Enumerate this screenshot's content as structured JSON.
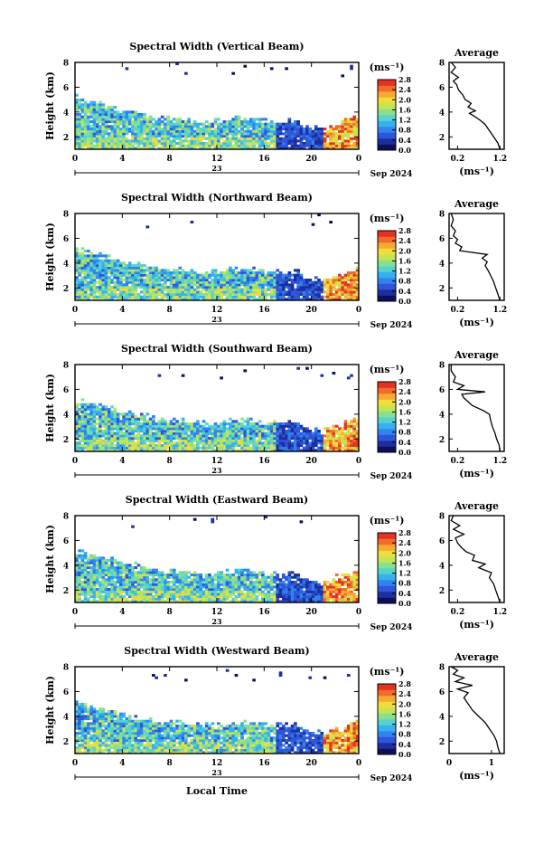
{
  "page": {
    "xlabel": "Local Time",
    "unit_label": "(ms⁻¹)",
    "date_label": "Sep 2024",
    "day_label": "23",
    "avg_title": "Average",
    "avg_xlabel": "(ms⁻¹)"
  },
  "colormap": [
    "#0d0f5a",
    "#1d2f9e",
    "#2f55d8",
    "#2f84ee",
    "#35b1f0",
    "#58d3cc",
    "#88e08f",
    "#c4e454",
    "#f2dc3c",
    "#f7a934",
    "#f36b2b",
    "#e33224"
  ],
  "chart_data": [
    {
      "type": "heatmap",
      "title": "Spectral Width (Vertical Beam)",
      "ylabel": "Height (km)",
      "x_ticks": [
        "0",
        "4",
        "8",
        "12",
        "16",
        "20",
        "0"
      ],
      "x_range": [
        0,
        24
      ],
      "y_ticks": [
        "2",
        "4",
        "6",
        "8"
      ],
      "y_range": [
        1,
        8
      ],
      "colorbar_ticks": [
        "0.0",
        "0.4",
        "0.8",
        "1.2",
        "1.6",
        "2.0",
        "2.4",
        "2.8"
      ],
      "color_range": [
        0,
        2.8
      ],
      "average": {
        "title": "Average",
        "x_ticks": [
          "0.2",
          "1.2"
        ],
        "x_range": [
          0,
          1.3
        ],
        "y_ticks": [
          "2",
          "4",
          "6",
          "8"
        ],
        "y_range": [
          1,
          8
        ],
        "profile": [
          [
            1.2,
            1.0
          ],
          [
            1.15,
            1.5
          ],
          [
            1.05,
            2.0
          ],
          [
            0.95,
            2.5
          ],
          [
            0.85,
            3.0
          ],
          [
            0.75,
            3.3
          ],
          [
            0.62,
            3.6
          ],
          [
            0.48,
            3.9
          ],
          [
            0.62,
            4.1
          ],
          [
            0.45,
            4.4
          ],
          [
            0.52,
            4.7
          ],
          [
            0.38,
            5.0
          ],
          [
            0.32,
            5.4
          ],
          [
            0.22,
            5.8
          ],
          [
            0.18,
            6.2
          ],
          [
            0.1,
            6.5
          ],
          [
            0.22,
            6.8
          ],
          [
            0.05,
            7.2
          ],
          [
            0.15,
            7.6
          ],
          [
            0.05,
            8.0
          ]
        ]
      }
    },
    {
      "type": "heatmap",
      "title": "Spectral Width (Northward Beam)",
      "ylabel": "Height (km)",
      "x_ticks": [
        "0",
        "4",
        "8",
        "12",
        "16",
        "20",
        "0"
      ],
      "x_range": [
        0,
        24
      ],
      "y_ticks": [
        "2",
        "4",
        "6",
        "8"
      ],
      "y_range": [
        1,
        8
      ],
      "colorbar_ticks": [
        "0.0",
        "0.4",
        "0.8",
        "1.2",
        "1.6",
        "2.0",
        "2.4",
        "2.8"
      ],
      "color_range": [
        0,
        2.8
      ],
      "average": {
        "title": "Average",
        "x_ticks": [
          "0.2",
          "1.2"
        ],
        "x_range": [
          0,
          1.3
        ],
        "y_ticks": [
          "2",
          "4",
          "6",
          "8"
        ],
        "y_range": [
          1,
          8
        ],
        "profile": [
          [
            1.2,
            1.0
          ],
          [
            1.15,
            1.5
          ],
          [
            1.1,
            2.0
          ],
          [
            1.05,
            2.5
          ],
          [
            0.98,
            3.0
          ],
          [
            0.92,
            3.4
          ],
          [
            0.85,
            3.8
          ],
          [
            0.9,
            4.1
          ],
          [
            0.78,
            4.4
          ],
          [
            0.9,
            4.7
          ],
          [
            0.25,
            5.0
          ],
          [
            0.3,
            5.3
          ],
          [
            0.15,
            5.6
          ],
          [
            0.2,
            5.9
          ],
          [
            0.1,
            6.2
          ],
          [
            0.15,
            6.6
          ],
          [
            0.05,
            7.0
          ],
          [
            0.1,
            7.5
          ],
          [
            0.05,
            8.0
          ]
        ]
      }
    },
    {
      "type": "heatmap",
      "title": "Spectral Width (Southward Beam)",
      "ylabel": "Height (km)",
      "x_ticks": [
        "0",
        "4",
        "8",
        "12",
        "16",
        "20",
        "0"
      ],
      "x_range": [
        0,
        24
      ],
      "y_ticks": [
        "2",
        "4",
        "6",
        "8"
      ],
      "y_range": [
        1,
        8
      ],
      "colorbar_ticks": [
        "0.0",
        "0.4",
        "0.8",
        "1.2",
        "1.6",
        "2.0",
        "2.4",
        "2.8"
      ],
      "color_range": [
        0,
        2.8
      ],
      "average": {
        "title": "Average",
        "x_ticks": [
          "0.2",
          "1.2"
        ],
        "x_range": [
          0,
          1.3
        ],
        "y_ticks": [
          "2",
          "4",
          "6",
          "8"
        ],
        "y_range": [
          1,
          8
        ],
        "profile": [
          [
            1.2,
            1.0
          ],
          [
            1.18,
            1.5
          ],
          [
            1.12,
            2.0
          ],
          [
            1.08,
            2.5
          ],
          [
            1.02,
            3.0
          ],
          [
            0.98,
            3.5
          ],
          [
            0.95,
            4.0
          ],
          [
            0.8,
            4.3
          ],
          [
            0.55,
            4.7
          ],
          [
            0.45,
            5.0
          ],
          [
            0.35,
            5.3
          ],
          [
            0.3,
            5.6
          ],
          [
            0.85,
            5.8
          ],
          [
            0.2,
            6.0
          ],
          [
            0.35,
            6.3
          ],
          [
            0.1,
            6.6
          ],
          [
            0.15,
            7.0
          ],
          [
            0.05,
            7.5
          ],
          [
            0.05,
            8.0
          ]
        ]
      }
    },
    {
      "type": "heatmap",
      "title": "Spectral Width (Eastward Beam)",
      "ylabel": "Height (km)",
      "x_ticks": [
        "0",
        "4",
        "8",
        "12",
        "16",
        "20",
        "0"
      ],
      "x_range": [
        0,
        24
      ],
      "y_ticks": [
        "2",
        "4",
        "6",
        "8"
      ],
      "y_range": [
        1,
        8
      ],
      "colorbar_ticks": [
        "0.0",
        "0.4",
        "0.8",
        "1.2",
        "1.6",
        "2.0",
        "2.4",
        "2.8"
      ],
      "color_range": [
        0,
        2.8
      ],
      "average": {
        "title": "Average",
        "x_ticks": [
          "0.2",
          "1.2"
        ],
        "x_range": [
          0,
          1.3
        ],
        "y_ticks": [
          "2",
          "4",
          "6",
          "8"
        ],
        "y_range": [
          1,
          8
        ],
        "profile": [
          [
            1.2,
            1.0
          ],
          [
            1.15,
            1.5
          ],
          [
            1.1,
            2.0
          ],
          [
            1.05,
            2.5
          ],
          [
            0.95,
            3.0
          ],
          [
            1.0,
            3.4
          ],
          [
            0.7,
            3.8
          ],
          [
            0.85,
            4.1
          ],
          [
            0.55,
            4.4
          ],
          [
            0.6,
            4.8
          ],
          [
            0.4,
            5.1
          ],
          [
            0.3,
            5.4
          ],
          [
            0.2,
            5.8
          ],
          [
            0.15,
            6.2
          ],
          [
            0.35,
            6.5
          ],
          [
            0.1,
            6.9
          ],
          [
            0.25,
            7.2
          ],
          [
            0.05,
            7.6
          ],
          [
            0.1,
            8.0
          ]
        ]
      }
    },
    {
      "type": "heatmap",
      "title": "Spectral Width (Westward Beam)",
      "ylabel": "Height (km)",
      "x_ticks": [
        "0",
        "4",
        "8",
        "12",
        "16",
        "20",
        "0"
      ],
      "x_range": [
        0,
        24
      ],
      "y_ticks": [
        "2",
        "4",
        "6",
        "8"
      ],
      "y_range": [
        1,
        8
      ],
      "colorbar_ticks": [
        "0.0",
        "0.4",
        "0.8",
        "1.2",
        "1.6",
        "2.0",
        "2.4",
        "2.8"
      ],
      "color_range": [
        0,
        2.8
      ],
      "average": {
        "title": "Average",
        "x_ticks": [
          "0",
          "1"
        ],
        "x_range": [
          0,
          1.3
        ],
        "y_ticks": [
          "2",
          "4",
          "6",
          "8"
        ],
        "y_range": [
          1,
          8
        ],
        "profile": [
          [
            1.2,
            1.0
          ],
          [
            1.15,
            1.5
          ],
          [
            1.12,
            2.0
          ],
          [
            1.05,
            2.5
          ],
          [
            0.95,
            3.0
          ],
          [
            0.85,
            3.5
          ],
          [
            0.7,
            4.0
          ],
          [
            0.55,
            4.5
          ],
          [
            0.45,
            5.0
          ],
          [
            0.35,
            5.5
          ],
          [
            0.45,
            5.9
          ],
          [
            0.2,
            6.2
          ],
          [
            0.55,
            6.5
          ],
          [
            0.15,
            6.8
          ],
          [
            0.35,
            7.1
          ],
          [
            0.1,
            7.4
          ],
          [
            0.2,
            7.7
          ],
          [
            0.05,
            8.0
          ]
        ]
      }
    }
  ]
}
